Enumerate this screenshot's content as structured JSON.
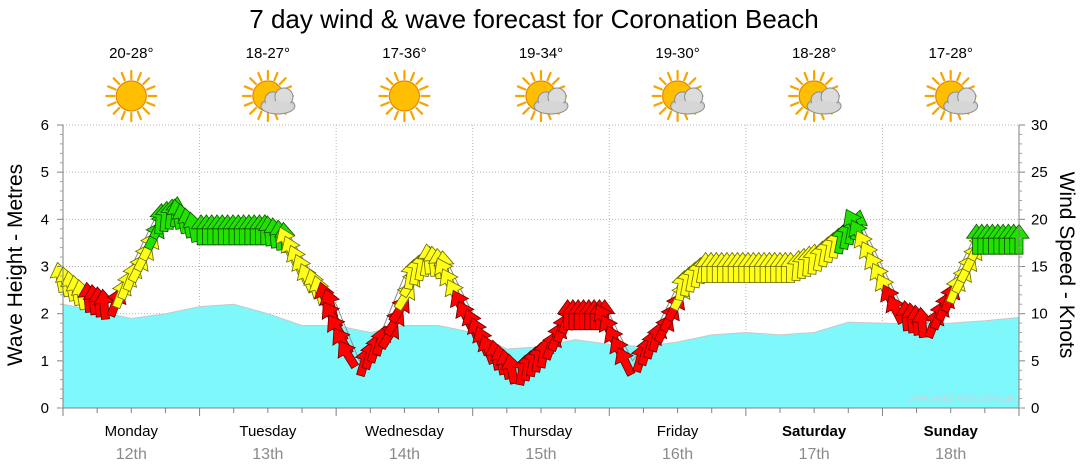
{
  "chart_data": {
    "type": "area",
    "title": "7 day wind & wave forecast for Coronation Beach",
    "ylabel_left": "Wave Height - Metres",
    "ylabel_right": "Wind Speed - Knots",
    "ylim_left": [
      0,
      6
    ],
    "ylim_right": [
      0,
      30
    ],
    "yticks_left": [
      "0",
      "1",
      "2",
      "3",
      "4",
      "5",
      "6"
    ],
    "yticks_right": [
      "0",
      "5",
      "10",
      "15",
      "20",
      "25",
      "30"
    ],
    "credit": "www.seabreeze.com.au",
    "days": [
      {
        "name": "Monday",
        "date": "12th",
        "temp": "20-28°",
        "weather": "sunny",
        "bold": false
      },
      {
        "name": "Tuesday",
        "date": "13th",
        "temp": "18-27°",
        "weather": "partly-cloudy",
        "bold": false
      },
      {
        "name": "Wednesday",
        "date": "14th",
        "temp": "17-36°",
        "weather": "sunny",
        "bold": false
      },
      {
        "name": "Thursday",
        "date": "15th",
        "temp": "19-34°",
        "weather": "partly-cloudy",
        "bold": false
      },
      {
        "name": "Friday",
        "date": "16th",
        "temp": "19-30°",
        "weather": "partly-cloudy",
        "bold": false
      },
      {
        "name": "Saturday",
        "date": "17th",
        "temp": "18-28°",
        "weather": "partly-cloudy",
        "bold": true
      },
      {
        "name": "Sunday",
        "date": "18th",
        "temp": "17-28°",
        "weather": "partly-cloudy",
        "bold": true
      }
    ],
    "wave_height_m": {
      "x_days": [
        0,
        0.25,
        0.5,
        0.75,
        1.0,
        1.25,
        1.5,
        1.75,
        2.0,
        2.25,
        2.5,
        2.75,
        3.0,
        3.25,
        3.5,
        3.75,
        4.0,
        4.25,
        4.5,
        4.75,
        5.0,
        5.25,
        5.5,
        5.75,
        6.0,
        6.25,
        6.5,
        6.75,
        7.0
      ],
      "values": [
        2.2,
        2.05,
        1.9,
        2.0,
        2.15,
        2.2,
        2.0,
        1.75,
        1.75,
        1.6,
        1.75,
        1.75,
        1.6,
        1.25,
        1.3,
        1.45,
        1.35,
        1.3,
        1.4,
        1.55,
        1.6,
        1.55,
        1.6,
        1.82,
        1.8,
        1.78,
        1.8,
        1.85,
        1.92
      ]
    },
    "wind_knots": {
      "x_days": [
        0,
        0.17,
        0.33,
        0.5,
        0.67,
        0.83,
        1.0,
        1.17,
        1.33,
        1.5,
        1.67,
        1.83,
        2.0,
        2.17,
        2.33,
        2.5,
        2.67,
        2.83,
        3.0,
        3.17,
        3.33,
        3.5,
        3.67,
        3.83,
        4.0,
        4.17,
        4.33,
        4.5,
        4.67,
        4.83,
        5.0,
        5.17,
        5.33,
        5.5,
        5.67,
        5.83,
        6.0,
        6.17,
        6.33,
        6.5,
        6.67,
        6.83,
        7.0
      ],
      "values": [
        14,
        12,
        11,
        15,
        20,
        21,
        19,
        19,
        19,
        19,
        18,
        14,
        11,
        5,
        8,
        14,
        16,
        15,
        10,
        6,
        4,
        6,
        10,
        10,
        10,
        5,
        8,
        13,
        15,
        15,
        15,
        15,
        15,
        16,
        18,
        20,
        15,
        10,
        9,
        13,
        18,
        18,
        18
      ]
    }
  }
}
